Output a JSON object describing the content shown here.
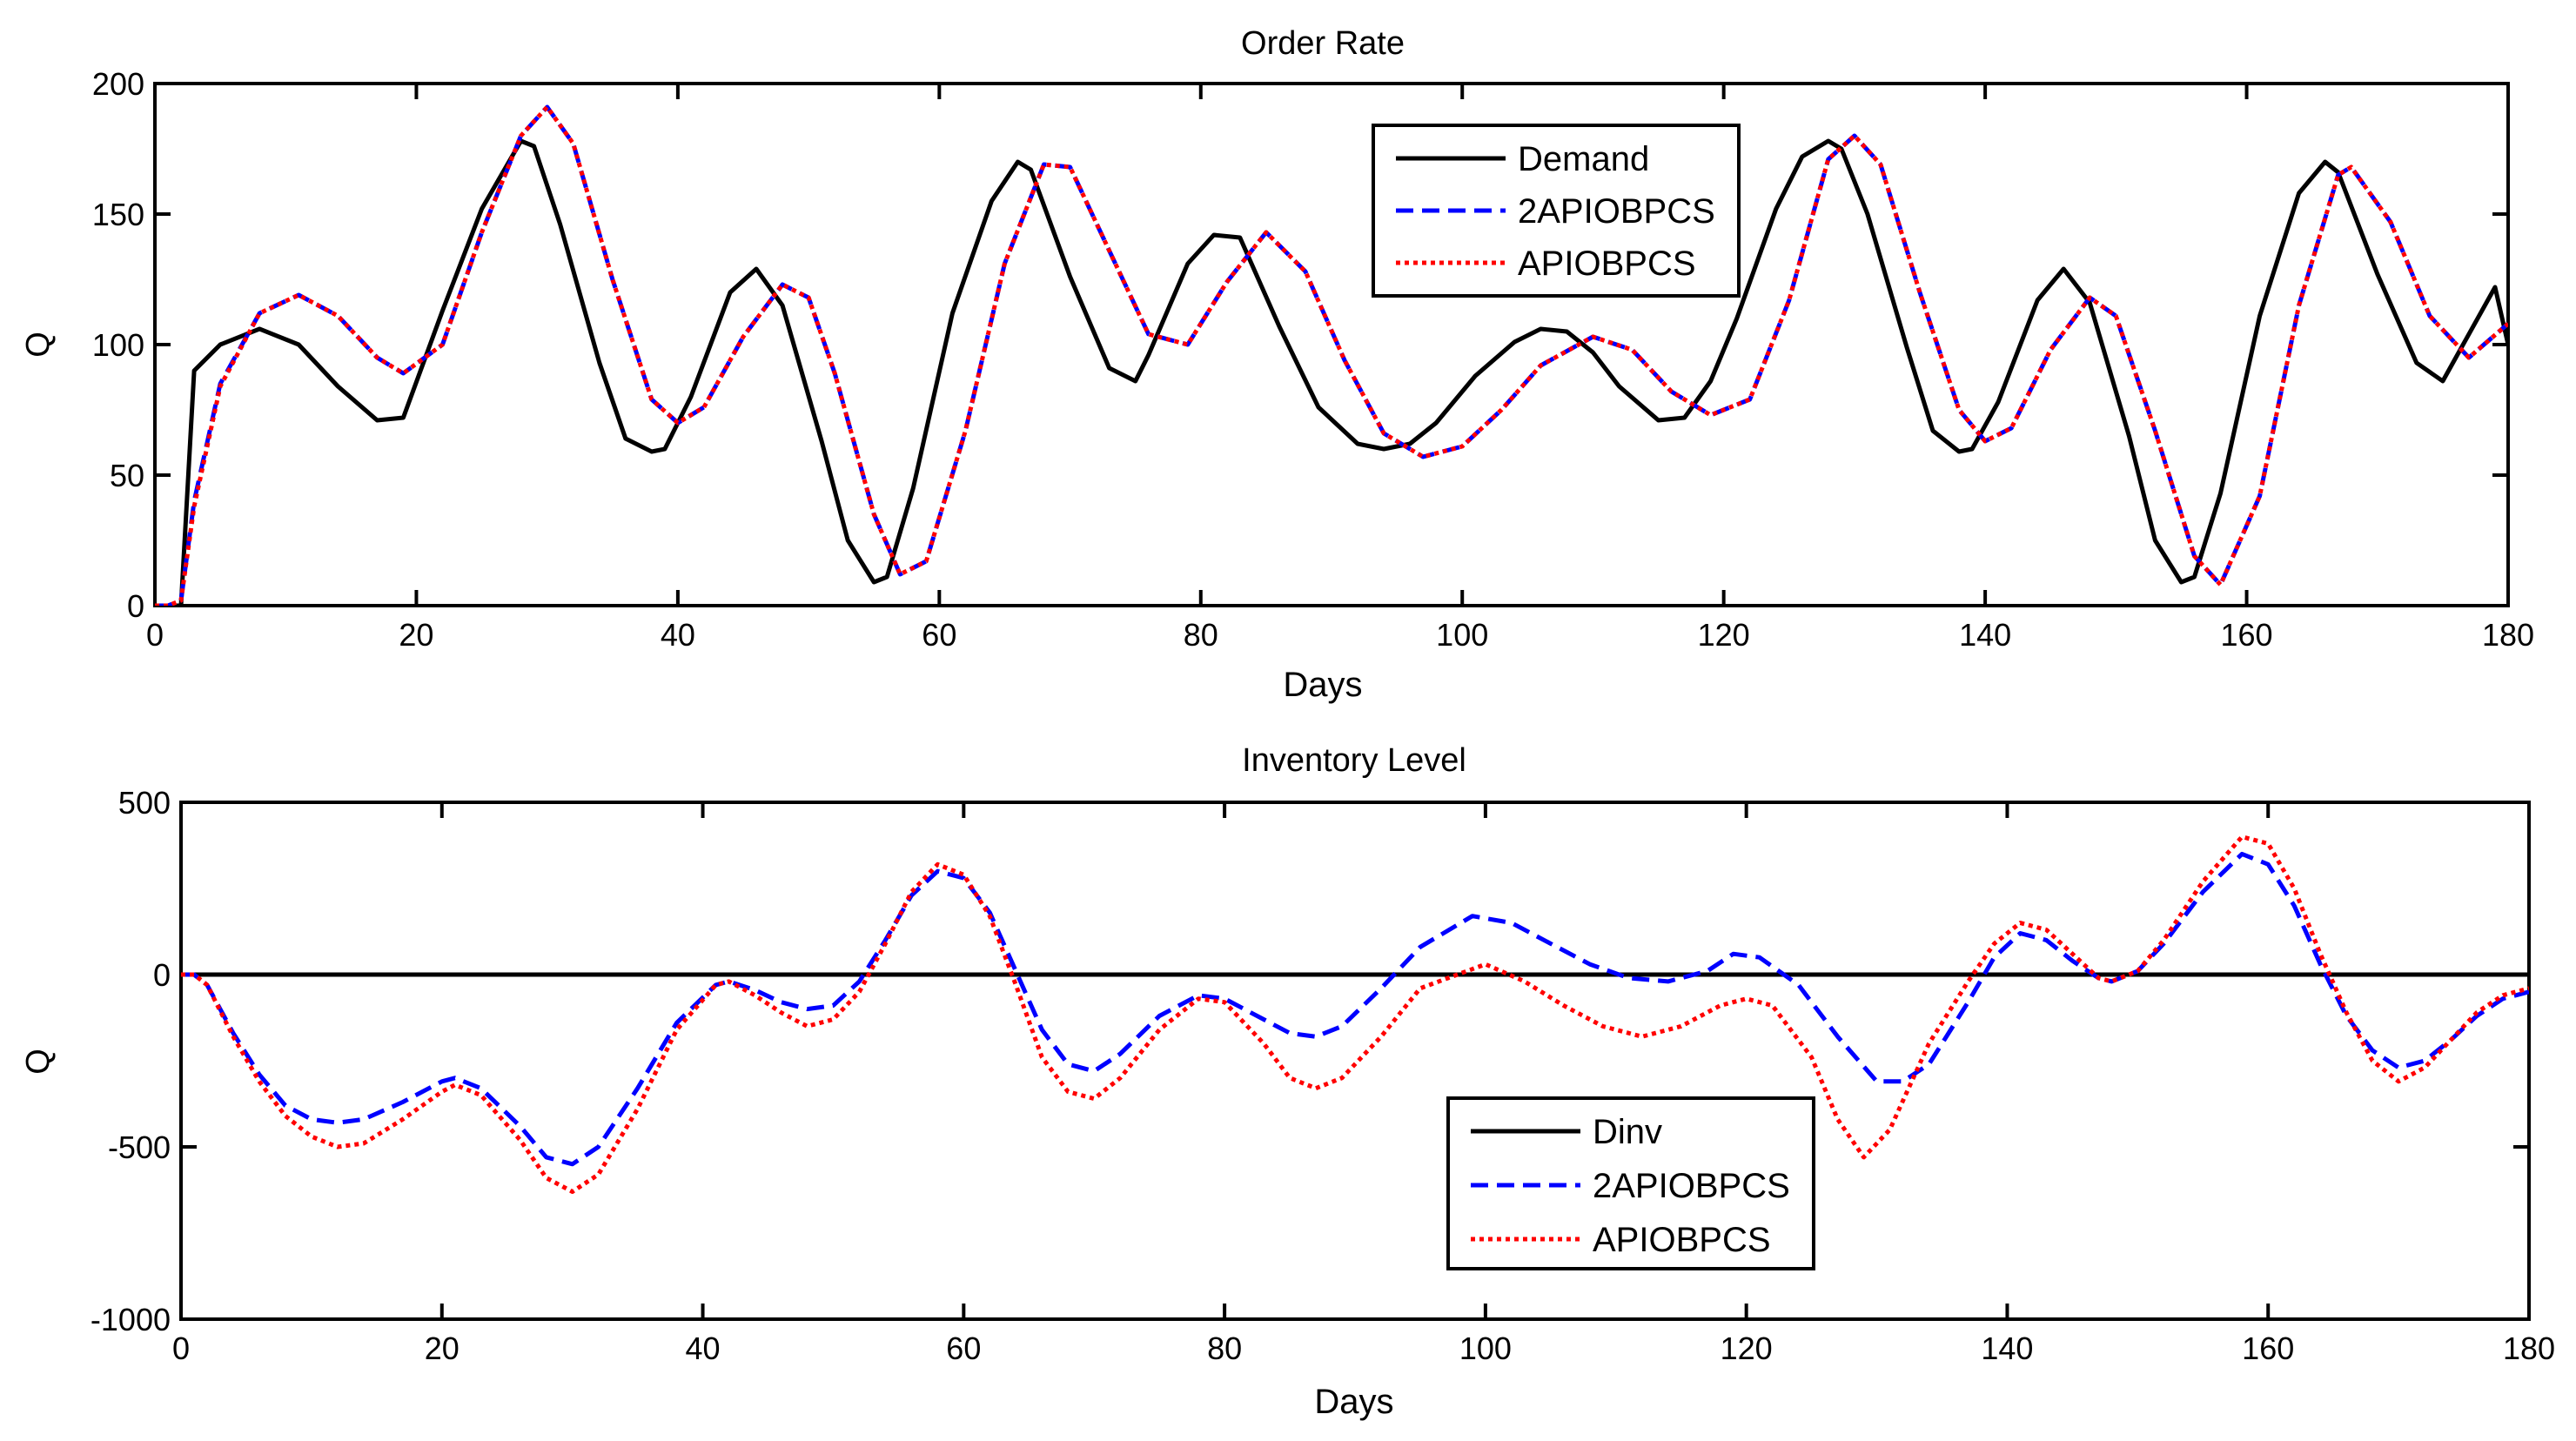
{
  "chart_data": [
    {
      "type": "line",
      "title": "Order Rate",
      "xlabel": "Days",
      "ylabel": "Q",
      "xlim": [
        0,
        180
      ],
      "ylim": [
        0,
        200
      ],
      "xticks": [
        0,
        20,
        40,
        60,
        80,
        100,
        120,
        140,
        160,
        180
      ],
      "yticks": [
        0,
        50,
        100,
        150,
        200
      ],
      "legend_position": "top-center",
      "series": [
        {
          "name": "Demand",
          "color": "#000000",
          "style": "solid",
          "x": [
            0,
            1,
            2,
            3,
            5,
            8,
            11,
            14,
            17,
            19,
            22,
            25,
            28,
            29,
            31,
            34,
            36,
            38,
            39,
            41,
            44,
            46,
            48,
            51,
            53,
            55,
            56,
            58,
            61,
            64,
            66,
            67,
            70,
            73,
            75,
            76,
            79,
            81,
            83,
            86,
            89,
            92,
            94,
            96,
            98,
            101,
            104,
            106,
            108,
            110,
            112,
            115,
            117,
            119,
            121,
            124,
            126,
            128,
            129,
            131,
            134,
            136,
            138,
            139,
            141,
            144,
            146,
            148,
            151,
            153,
            155,
            156,
            158,
            161,
            164,
            166,
            167,
            170,
            173,
            175,
            176,
            179,
            180
          ],
          "values": [
            0,
            0,
            0,
            90,
            100,
            106,
            100,
            84,
            71,
            72,
            113,
            152,
            178,
            176,
            146,
            93,
            64,
            59,
            60,
            80,
            120,
            129,
            115,
            63,
            25,
            9,
            11,
            45,
            112,
            155,
            170,
            167,
            126,
            91,
            86,
            96,
            131,
            142,
            141,
            107,
            76,
            62,
            60,
            62,
            70,
            88,
            101,
            106,
            105,
            97,
            84,
            71,
            72,
            86,
            110,
            152,
            172,
            178,
            175,
            150,
            99,
            67,
            59,
            60,
            78,
            117,
            129,
            116,
            65,
            25,
            9,
            11,
            43,
            111,
            158,
            170,
            166,
            127,
            93,
            86,
            95,
            122,
            100
          ]
        },
        {
          "name": "2APIOBPCS",
          "color": "#0000ff",
          "style": "dashed",
          "x": [
            0,
            1,
            2,
            3,
            5,
            8,
            11,
            14,
            17,
            19,
            22,
            25,
            28,
            30,
            32,
            35,
            38,
            40,
            42,
            45,
            48,
            50,
            52,
            55,
            57,
            59,
            62,
            65,
            68,
            70,
            73,
            76,
            79,
            82,
            85,
            88,
            91,
            94,
            97,
            100,
            103,
            106,
            110,
            113,
            116,
            119,
            122,
            125,
            128,
            130,
            132,
            135,
            138,
            140,
            142,
            145,
            148,
            150,
            153,
            156,
            158,
            161,
            164,
            167,
            168,
            171,
            174,
            177,
            180
          ],
          "values": [
            0,
            0,
            2,
            40,
            85,
            112,
            119,
            111,
            95,
            89,
            100,
            143,
            180,
            191,
            177,
            125,
            79,
            70,
            76,
            103,
            123,
            118,
            89,
            35,
            12,
            17,
            67,
            131,
            169,
            168,
            136,
            104,
            100,
            124,
            143,
            128,
            94,
            66,
            57,
            61,
            75,
            92,
            103,
            98,
            82,
            73,
            79,
            117,
            171,
            180,
            169,
            120,
            75,
            63,
            68,
            98,
            118,
            111,
            67,
            19,
            8,
            42,
            115,
            165,
            168,
            147,
            111,
            95,
            108
          ]
        },
        {
          "name": "APIOBPCS",
          "color": "#ff0000",
          "style": "dotted",
          "x": [
            0,
            1,
            2,
            3,
            5,
            8,
            11,
            14,
            17,
            19,
            22,
            25,
            28,
            30,
            32,
            35,
            38,
            40,
            42,
            45,
            48,
            50,
            52,
            55,
            57,
            59,
            62,
            65,
            68,
            70,
            73,
            76,
            79,
            82,
            85,
            88,
            91,
            94,
            97,
            100,
            103,
            106,
            110,
            113,
            116,
            119,
            122,
            125,
            128,
            130,
            132,
            135,
            138,
            140,
            142,
            145,
            148,
            150,
            153,
            156,
            158,
            161,
            164,
            167,
            168,
            171,
            174,
            177,
            180
          ],
          "values": [
            0,
            0,
            2,
            38,
            84,
            112,
            119,
            111,
            95,
            89,
            100,
            143,
            180,
            191,
            177,
            125,
            79,
            70,
            76,
            103,
            123,
            118,
            89,
            35,
            12,
            17,
            67,
            131,
            169,
            168,
            136,
            104,
            100,
            124,
            143,
            128,
            94,
            66,
            57,
            61,
            75,
            92,
            103,
            98,
            82,
            73,
            79,
            117,
            171,
            180,
            169,
            120,
            75,
            63,
            68,
            98,
            118,
            111,
            67,
            19,
            8,
            42,
            115,
            165,
            168,
            147,
            111,
            95,
            108
          ]
        }
      ]
    },
    {
      "type": "line",
      "title": "Inventory Level",
      "xlabel": "Days",
      "ylabel": "Q",
      "xlim": [
        0,
        180
      ],
      "ylim": [
        -1000,
        500
      ],
      "xticks": [
        0,
        20,
        40,
        60,
        80,
        100,
        120,
        140,
        160,
        180
      ],
      "yticks": [
        -1000,
        -500,
        0,
        500
      ],
      "legend_position": "bottom-center",
      "series": [
        {
          "name": "Dinv",
          "color": "#000000",
          "style": "solid",
          "x": [
            0,
            180
          ],
          "values": [
            0,
            0
          ]
        },
        {
          "name": "2APIOBPCS",
          "color": "#0000ff",
          "style": "dashed",
          "x": [
            0,
            1,
            2,
            4,
            6,
            8,
            10,
            12,
            14,
            17,
            20,
            21,
            23,
            26,
            28,
            30,
            32,
            35,
            38,
            41,
            42,
            44,
            46,
            48,
            50,
            52,
            54,
            56,
            58,
            60,
            62,
            64,
            66,
            68,
            70,
            72,
            75,
            78,
            80,
            83,
            85,
            87,
            89,
            92,
            95,
            99,
            102,
            105,
            108,
            111,
            114,
            117,
            119,
            121,
            124,
            127,
            130,
            132,
            134,
            137,
            139,
            141,
            143,
            145,
            147,
            148,
            150,
            152,
            155,
            158,
            160,
            162,
            164,
            166,
            168,
            170,
            172,
            174,
            176,
            178,
            180
          ],
          "values": [
            0,
            0,
            -30,
            -170,
            -290,
            -380,
            -420,
            -430,
            -420,
            -370,
            -310,
            -300,
            -330,
            -440,
            -530,
            -550,
            -500,
            -330,
            -140,
            -30,
            -20,
            -45,
            -80,
            -100,
            -90,
            -20,
            100,
            230,
            300,
            280,
            180,
            10,
            -160,
            -260,
            -280,
            -230,
            -120,
            -60,
            -70,
            -130,
            -170,
            -180,
            -150,
            -40,
            80,
            170,
            150,
            90,
            30,
            -10,
            -20,
            10,
            60,
            50,
            -30,
            -180,
            -310,
            -310,
            -260,
            -80,
            50,
            120,
            100,
            40,
            -10,
            -20,
            10,
            90,
            240,
            350,
            320,
            200,
            30,
            -120,
            -220,
            -270,
            -250,
            -190,
            -120,
            -70,
            -50
          ]
        },
        {
          "name": "APIOBPCS",
          "color": "#ff0000",
          "style": "dotted",
          "x": [
            0,
            1,
            2,
            4,
            6,
            8,
            10,
            12,
            14,
            17,
            20,
            21,
            23,
            26,
            28,
            30,
            32,
            35,
            38,
            41,
            42,
            44,
            46,
            48,
            50,
            52,
            54,
            56,
            58,
            60,
            62,
            64,
            66,
            68,
            70,
            72,
            75,
            78,
            80,
            83,
            85,
            87,
            89,
            92,
            95,
            100,
            103,
            106,
            109,
            112,
            115,
            118,
            120,
            122,
            125,
            127,
            129,
            131,
            134,
            137,
            139,
            141,
            143,
            145,
            147,
            148,
            150,
            152,
            155,
            158,
            160,
            162,
            164,
            166,
            168,
            170,
            172,
            174,
            176,
            178,
            180
          ],
          "values": [
            0,
            0,
            -30,
            -180,
            -310,
            -410,
            -470,
            -500,
            -490,
            -420,
            -340,
            -320,
            -350,
            -480,
            -590,
            -630,
            -580,
            -390,
            -160,
            -30,
            -20,
            -60,
            -110,
            -150,
            -130,
            -50,
            90,
            240,
            320,
            290,
            170,
            -30,
            -240,
            -340,
            -360,
            -300,
            -160,
            -70,
            -80,
            -200,
            -300,
            -330,
            -300,
            -180,
            -40,
            30,
            -20,
            -90,
            -150,
            -180,
            -150,
            -90,
            -70,
            -90,
            -240,
            -420,
            -530,
            -450,
            -200,
            -20,
            90,
            150,
            130,
            60,
            -10,
            -20,
            10,
            100,
            270,
            400,
            380,
            250,
            60,
            -110,
            -250,
            -310,
            -270,
            -190,
            -110,
            -60,
            -40
          ]
        }
      ]
    }
  ]
}
